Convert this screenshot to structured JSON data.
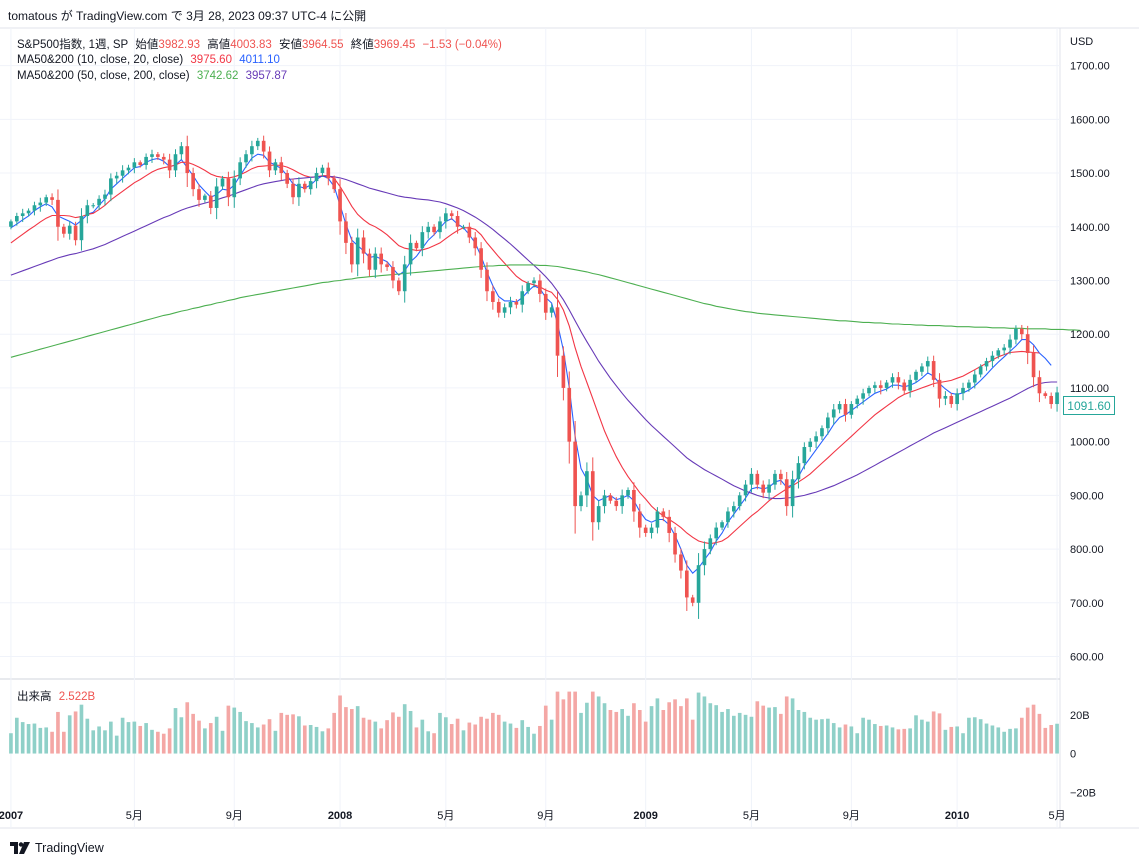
{
  "header": {
    "publish_line": "tomatous が TradingView.com で 3月 28, 2023 09:37 UTC-4 に公開"
  },
  "legend": {
    "symbol": "S&P500指数, 1週, SP",
    "open_label": "始値",
    "open": "3982.93",
    "high_label": "高値",
    "high": "4003.83",
    "low_label": "安値",
    "low": "3964.55",
    "close_label": "終値",
    "close": "3969.45",
    "change": "−1.53 (−0.04%)",
    "ma1_name": "MA50&200 (10, close, 20, close)",
    "ma1_v1": "3975.60",
    "ma1_v2": "4011.10",
    "ma2_name": "MA50&200 (50, close, 200, close)",
    "ma2_v1": "3742.62",
    "ma2_v2": "3957.87",
    "volume_label": "出来高",
    "volume": "2.522B"
  },
  "price_axis": {
    "currency": "USD",
    "last_price": "1091.60"
  },
  "footer": {
    "brand": "TradingView"
  },
  "colors": {
    "up": "#26a69a",
    "down": "#ef5350",
    "ma10": "#2962ff",
    "ma20": "#f23645",
    "ma50": "#673ab7",
    "ma200": "#4caf50",
    "vol_up": "#8fd0c8",
    "vol_down": "#f4a7a5"
  },
  "chart_data": {
    "type": "candlestick",
    "title": "S&P500指数, 1週, SP",
    "interval": "1W",
    "ylim": [
      560,
      1770
    ],
    "y_ticks": [
      "1700.00",
      "1600.00",
      "1500.00",
      "1400.00",
      "1300.00",
      "1200.00",
      "1100.00",
      "1000.00",
      "900.00",
      "800.00",
      "700.00",
      "600.00"
    ],
    "volume_ticks": [
      "20B",
      "0",
      "−20B"
    ],
    "volume_range_B": [
      -24,
      38
    ],
    "x_labels": [
      {
        "label": "2007",
        "week": 0
      },
      {
        "label": "5月",
        "week": 21
      },
      {
        "label": "9月",
        "week": 38
      },
      {
        "label": "2008",
        "week": 56
      },
      {
        "label": "5月",
        "week": 74
      },
      {
        "label": "9月",
        "week": 91
      },
      {
        "label": "2009",
        "week": 108
      },
      {
        "label": "5月",
        "week": 126
      },
      {
        "label": "9月",
        "week": 143
      },
      {
        "label": "2010",
        "week": 161
      },
      {
        "label": "5月",
        "week": 178
      }
    ],
    "closes": [
      1410,
      1420,
      1425,
      1430,
      1440,
      1445,
      1455,
      1450,
      1400,
      1387,
      1402,
      1375,
      1420,
      1440,
      1440,
      1452,
      1460,
      1490,
      1495,
      1505,
      1510,
      1520,
      1515,
      1530,
      1535,
      1530,
      1525,
      1505,
      1535,
      1550,
      1500,
      1470,
      1450,
      1458,
      1435,
      1475,
      1490,
      1455,
      1490,
      1520,
      1535,
      1550,
      1560,
      1540,
      1505,
      1520,
      1500,
      1480,
      1455,
      1480,
      1470,
      1485,
      1500,
      1510,
      1490,
      1470,
      1410,
      1370,
      1330,
      1380,
      1350,
      1320,
      1350,
      1330,
      1325,
      1300,
      1280,
      1330,
      1370,
      1360,
      1390,
      1400,
      1390,
      1410,
      1425,
      1420,
      1400,
      1400,
      1380,
      1360,
      1320,
      1280,
      1260,
      1240,
      1250,
      1260,
      1255,
      1280,
      1295,
      1300,
      1275,
      1240,
      1250,
      1160,
      1100,
      1000,
      880,
      900,
      945,
      850,
      880,
      900,
      890,
      880,
      900,
      910,
      870,
      840,
      830,
      840,
      870,
      860,
      830,
      790,
      760,
      710,
      700,
      770,
      800,
      820,
      840,
      850,
      870,
      880,
      900,
      920,
      940,
      920,
      905,
      920,
      940,
      930,
      880,
      930,
      960,
      990,
      1000,
      1010,
      1025,
      1045,
      1060,
      1070,
      1050,
      1070,
      1080,
      1090,
      1100,
      1105,
      1100,
      1110,
      1120,
      1110,
      1095,
      1115,
      1130,
      1140,
      1150,
      1115,
      1080,
      1085,
      1070,
      1090,
      1100,
      1110,
      1125,
      1140,
      1150,
      1160,
      1170,
      1175,
      1190,
      1210,
      1200,
      1165,
      1120,
      1090,
      1085,
      1070,
      1091.6
    ],
    "series": [
      {
        "name": "MA 10",
        "values": [
          1398,
          1405,
          1413,
          1420,
          1430,
          1437,
          1443,
          1437,
          1420,
          1415,
          1410,
          1403,
          1412,
          1423,
          1427,
          1440,
          1452,
          1470,
          1480,
          1490,
          1500,
          1510,
          1512,
          1520,
          1525,
          1527,
          1522,
          1512,
          1515,
          1525,
          1510,
          1495,
          1478,
          1466,
          1455,
          1460,
          1470,
          1468,
          1478,
          1495,
          1512,
          1528,
          1535,
          1533,
          1520,
          1515,
          1508,
          1495,
          1480,
          1475,
          1472,
          1478,
          1488,
          1495,
          1490,
          1475,
          1440,
          1405,
          1375,
          1365,
          1355,
          1343,
          1345,
          1340,
          1335,
          1322,
          1310,
          1318,
          1335,
          1345,
          1360,
          1375,
          1385,
          1398,
          1410,
          1415,
          1405,
          1398,
          1385,
          1370,
          1345,
          1315,
          1290,
          1270,
          1262,
          1262,
          1260,
          1268,
          1280,
          1290,
          1285,
          1268,
          1258,
          1220,
          1170,
          1100,
          1010,
          950,
          930,
          900,
          890,
          895,
          900,
          892,
          895,
          900,
          890,
          870,
          855,
          850,
          855,
          855,
          845,
          825,
          800,
          770,
          755,
          765,
          780,
          795,
          815,
          830,
          850,
          865,
          880,
          895,
          912,
          915,
          912,
          915,
          925,
          928,
          915,
          920,
          935,
          955,
          970,
          985,
          1000,
          1015,
          1032,
          1045,
          1050,
          1058,
          1066,
          1074,
          1082,
          1090,
          1094,
          1098,
          1105,
          1105,
          1102,
          1105,
          1110,
          1118,
          1128,
          1122,
          1108,
          1098,
          1090,
          1088,
          1091,
          1096,
          1104,
          1114,
          1125,
          1137,
          1148,
          1158,
          1168,
          1178,
          1190,
          1190,
          1180,
          1165,
          1155,
          1142
        ]
      },
      {
        "name": "MA 20",
        "values": [
          1370,
          1378,
          1386,
          1394,
          1401,
          1409,
          1416,
          1421,
          1421,
          1421,
          1420,
          1417,
          1419,
          1423,
          1425,
          1432,
          1440,
          1450,
          1458,
          1466,
          1474,
          1482,
          1488,
          1495,
          1502,
          1507,
          1510,
          1512,
          1515,
          1520,
          1520,
          1516,
          1511,
          1505,
          1498,
          1494,
          1492,
          1491,
          1493,
          1497,
          1502,
          1508,
          1512,
          1513,
          1514,
          1515,
          1514,
          1511,
          1506,
          1500,
          1495,
          1492,
          1493,
          1495,
          1495,
          1490,
          1475,
          1457,
          1438,
          1423,
          1413,
          1405,
          1400,
          1393,
          1385,
          1375,
          1365,
          1360,
          1358,
          1356,
          1357,
          1360,
          1365,
          1370,
          1378,
          1386,
          1393,
          1398,
          1398,
          1395,
          1385,
          1370,
          1357,
          1344,
          1332,
          1320,
          1308,
          1300,
          1295,
          1292,
          1288,
          1282,
          1278,
          1265,
          1245,
          1215,
          1175,
          1140,
          1110,
          1080,
          1050,
          1020,
          995,
          972,
          952,
          935,
          920,
          905,
          893,
          880,
          870,
          862,
          855,
          848,
          840,
          830,
          822,
          815,
          812,
          810,
          812,
          815,
          822,
          832,
          842,
          852,
          862,
          870,
          880,
          890,
          898,
          905,
          912,
          918,
          925,
          932,
          940,
          950,
          960,
          970,
          980,
          990,
          1000,
          1010,
          1020,
          1030,
          1040,
          1050,
          1058,
          1066,
          1074,
          1082,
          1088,
          1092,
          1096,
          1100,
          1104,
          1108,
          1110,
          1112,
          1114,
          1118,
          1122,
          1128,
          1134,
          1140,
          1146,
          1152,
          1158,
          1162,
          1166,
          1167,
          1168,
          1167,
          1166,
          1165
        ]
      },
      {
        "name": "MA 50",
        "values": [
          1310,
          1314,
          1318,
          1322,
          1326,
          1330,
          1334,
          1338,
          1342,
          1345,
          1348,
          1350,
          1353,
          1356,
          1359,
          1363,
          1367,
          1372,
          1377,
          1382,
          1387,
          1392,
          1397,
          1402,
          1407,
          1412,
          1417,
          1421,
          1426,
          1431,
          1435,
          1438,
          1441,
          1444,
          1447,
          1450,
          1454,
          1457,
          1461,
          1465,
          1469,
          1473,
          1477,
          1480,
          1482,
          1484,
          1486,
          1488,
          1489,
          1490,
          1491,
          1492,
          1493,
          1494,
          1494,
          1493,
          1491,
          1488,
          1484,
          1480,
          1476,
          1472,
          1469,
          1466,
          1463,
          1460,
          1457,
          1455,
          1454,
          1452,
          1451,
          1450,
          1448,
          1446,
          1443,
          1439,
          1435,
          1430,
          1424,
          1418,
          1411,
          1403,
          1395,
          1386,
          1377,
          1368,
          1358,
          1348,
          1338,
          1328,
          1318,
          1307,
          1295,
          1280,
          1264,
          1245,
          1225,
          1205,
          1186,
          1168,
          1150,
          1134,
          1118,
          1104,
          1090,
          1077,
          1065,
          1053,
          1041,
          1030,
          1020,
          1010,
          1000,
          990,
          980,
          970,
          962,
          955,
          948,
          942,
          936,
          930,
          924,
          918,
          913,
          908,
          904,
          900,
          897,
          895,
          894,
          894,
          895,
          896,
          898,
          900,
          903,
          906,
          910,
          914,
          918,
          923,
          928,
          933,
          938,
          944,
          950,
          956,
          962,
          968,
          974,
          980,
          986,
          992,
          998,
          1004,
          1010,
          1016,
          1021,
          1026,
          1031,
          1036,
          1041,
          1046,
          1051,
          1056,
          1061,
          1066,
          1071,
          1076,
          1081,
          1087,
          1093,
          1099,
          1104,
          1108,
          1110,
          1111,
          1111
        ]
      },
      {
        "name": "MA 200",
        "values": [
          1157,
          1160,
          1163,
          1166,
          1169,
          1172,
          1175,
          1178,
          1181,
          1184,
          1187,
          1190,
          1193,
          1196,
          1199,
          1202,
          1205,
          1208,
          1211,
          1214,
          1217,
          1220,
          1223,
          1226,
          1229,
          1232,
          1235,
          1237,
          1240,
          1243,
          1245,
          1248,
          1250,
          1253,
          1255,
          1258,
          1260,
          1263,
          1265,
          1268,
          1270,
          1272,
          1274,
          1276,
          1278,
          1280,
          1282,
          1284,
          1286,
          1288,
          1290,
          1292,
          1294,
          1296,
          1297,
          1299,
          1300,
          1302,
          1303,
          1305,
          1306,
          1307,
          1308,
          1309,
          1310,
          1311,
          1312,
          1313,
          1314,
          1315,
          1316,
          1317,
          1318,
          1319,
          1320,
          1321,
          1322,
          1323,
          1324,
          1325,
          1326,
          1327,
          1327,
          1328,
          1328,
          1329,
          1329,
          1329,
          1329,
          1329,
          1328,
          1328,
          1327,
          1326,
          1324,
          1322,
          1320,
          1318,
          1316,
          1313,
          1311,
          1308,
          1305,
          1302,
          1299,
          1296,
          1293,
          1290,
          1287,
          1284,
          1281,
          1278,
          1275,
          1272,
          1269,
          1266,
          1263,
          1260,
          1257,
          1255,
          1252,
          1250,
          1248,
          1246,
          1244,
          1242,
          1241,
          1239,
          1238,
          1237,
          1236,
          1235,
          1234,
          1233,
          1232,
          1231,
          1230,
          1229,
          1228,
          1227,
          1226,
          1225,
          1225,
          1224,
          1223,
          1222,
          1222,
          1221,
          1221,
          1220,
          1219,
          1219,
          1218,
          1218,
          1217,
          1217,
          1216,
          1216,
          1216,
          1215,
          1215,
          1214,
          1214,
          1214,
          1213,
          1213,
          1213,
          1212,
          1212,
          1212,
          1211,
          1211,
          1211,
          1210,
          1210,
          1210,
          1210,
          1209,
          1209,
          1209,
          1208,
          1208,
          1207
        ]
      }
    ]
  }
}
